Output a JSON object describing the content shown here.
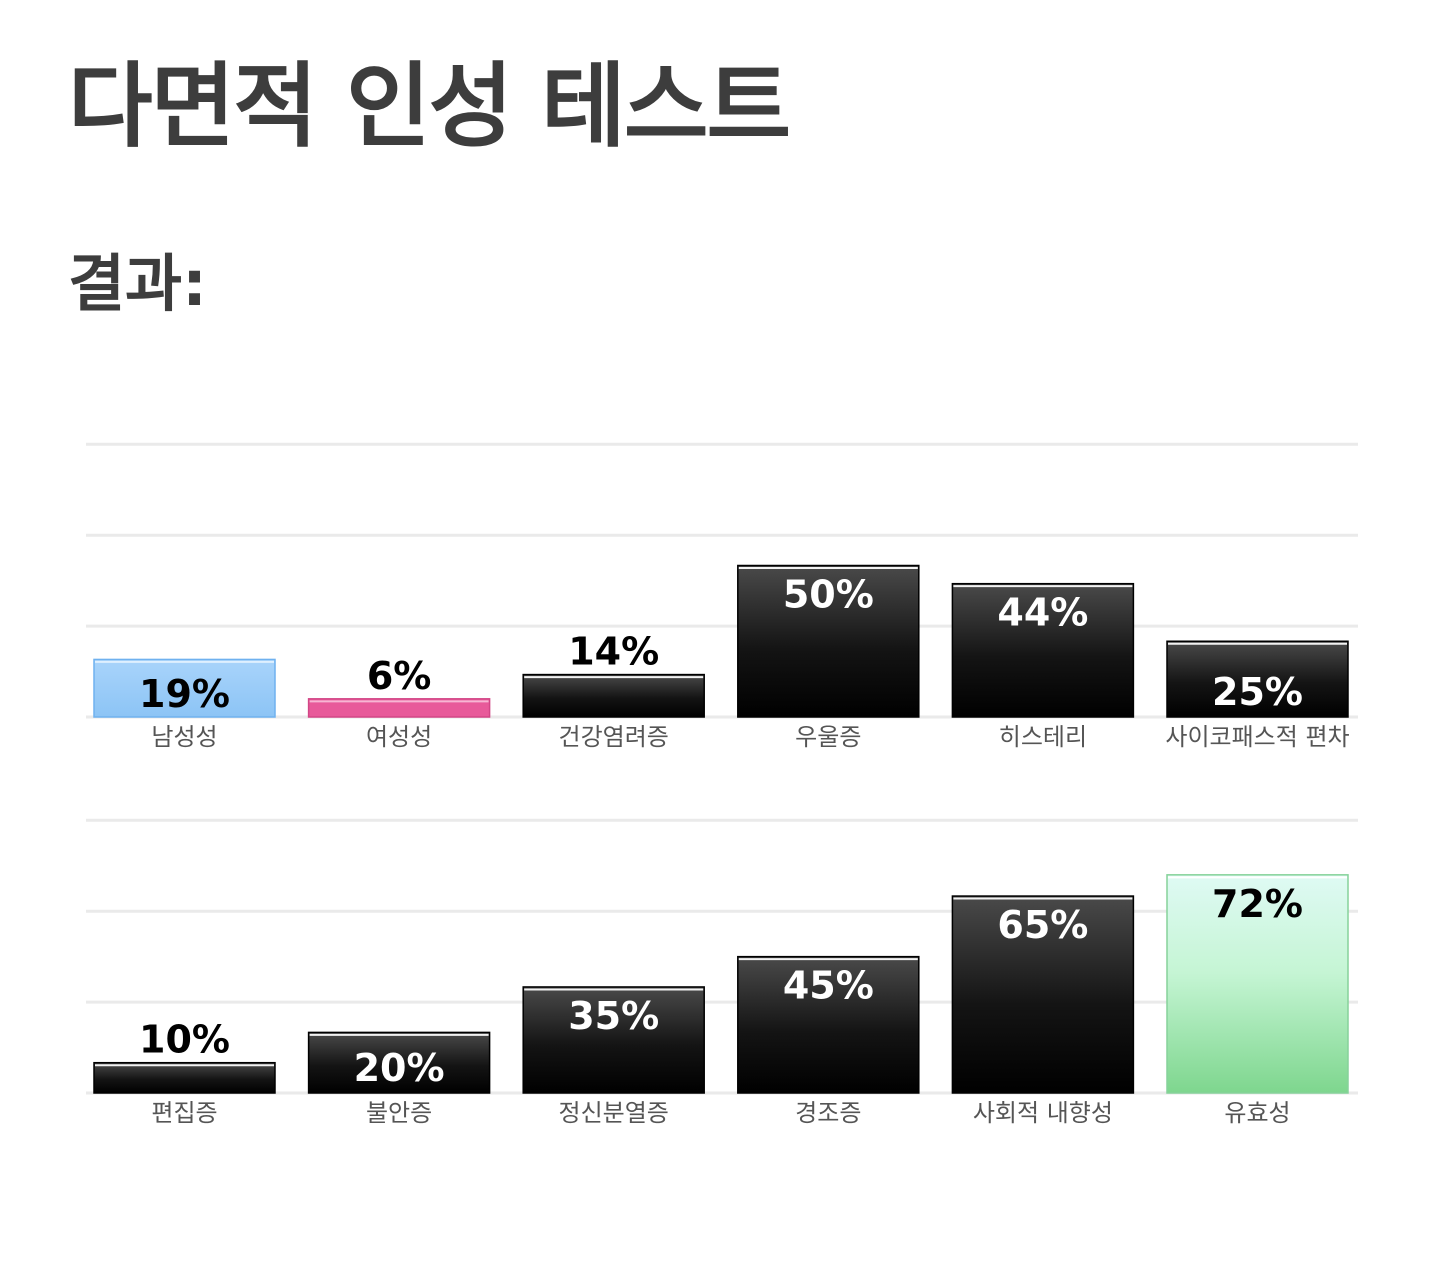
{
  "page": {
    "title": "다면적 인성 테스트",
    "results_heading": "결과:"
  },
  "colors": {
    "heading": "#3d3d3d",
    "grid": "#eaeaea",
    "default_bar": "#000000",
    "masculinity_bar": "#8cc4f5",
    "femininity_bar": "#e85a9a",
    "validity_bar_top": "#dffaf4",
    "validity_bar_bottom": "#7ed68e",
    "category_label": "#555555"
  },
  "chart_data": [
    {
      "type": "bar",
      "title": "",
      "xlabel": "",
      "ylabel": "",
      "ylim": [
        0,
        100
      ],
      "value_suffix": "%",
      "grid": true,
      "legend": "none",
      "categories": [
        "남성성",
        "여성성",
        "건강염려증",
        "우울증",
        "히스테리",
        "사이코패스적 편차"
      ],
      "values": [
        19,
        6,
        14,
        50,
        44,
        25
      ],
      "bar_styles": [
        "masculinity",
        "femininity",
        "dark",
        "dark",
        "dark",
        "dark"
      ]
    },
    {
      "type": "bar",
      "title": "",
      "xlabel": "",
      "ylabel": "",
      "ylim": [
        0,
        100
      ],
      "value_suffix": "%",
      "grid": true,
      "legend": "none",
      "categories": [
        "편집증",
        "불안증",
        "정신분열증",
        "경조증",
        "사회적 내향성",
        "유효성"
      ],
      "values": [
        10,
        20,
        35,
        45,
        65,
        72
      ],
      "bar_styles": [
        "dark",
        "dark",
        "dark",
        "dark",
        "dark",
        "validity"
      ]
    }
  ]
}
